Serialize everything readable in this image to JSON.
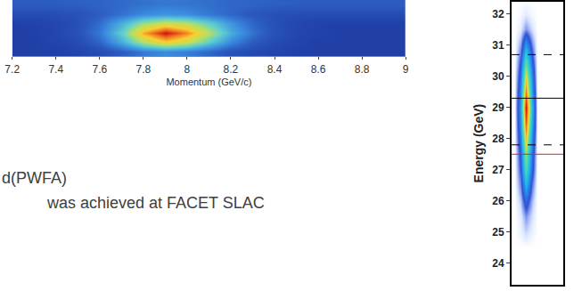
{
  "chart_data": [
    {
      "type": "heatmap",
      "xlabel": "Momentum (GeV/c)",
      "x": [
        7.2,
        7.3,
        7.4,
        7.5,
        7.6,
        7.7,
        7.8,
        7.9,
        8.0,
        8.1,
        8.2,
        8.3,
        8.4,
        8.5,
        8.6,
        8.7,
        8.8,
        8.9,
        9.0
      ],
      "y": [
        0,
        1,
        2,
        3,
        4,
        5
      ],
      "z": [
        [
          0,
          0,
          0,
          0.02,
          0.05,
          0.12,
          0.2,
          0.25,
          0.22,
          0.15,
          0.08,
          0.04,
          0.02,
          0,
          0,
          0,
          0,
          0,
          0
        ],
        [
          0,
          0,
          0.02,
          0.05,
          0.15,
          0.35,
          0.6,
          0.75,
          0.65,
          0.45,
          0.25,
          0.12,
          0.05,
          0.02,
          0,
          0,
          0,
          0,
          0
        ],
        [
          0,
          0,
          0.03,
          0.08,
          0.2,
          0.45,
          0.8,
          1.0,
          0.85,
          0.6,
          0.35,
          0.18,
          0.08,
          0.03,
          0.01,
          0,
          0,
          0,
          0
        ],
        [
          0,
          0.01,
          0.03,
          0.07,
          0.17,
          0.35,
          0.55,
          0.65,
          0.6,
          0.45,
          0.28,
          0.15,
          0.07,
          0.03,
          0.01,
          0,
          0,
          0,
          0
        ],
        [
          0.05,
          0.05,
          0.06,
          0.08,
          0.12,
          0.18,
          0.25,
          0.28,
          0.26,
          0.2,
          0.15,
          0.1,
          0.07,
          0.06,
          0.05,
          0.05,
          0.05,
          0.05,
          0.05
        ],
        [
          0.12,
          0.12,
          0.12,
          0.13,
          0.14,
          0.16,
          0.18,
          0.2,
          0.19,
          0.17,
          0.15,
          0.14,
          0.13,
          0.12,
          0.12,
          0.12,
          0.12,
          0.12,
          0.12
        ]
      ],
      "xlim": [
        7.2,
        9.0
      ],
      "xticks": [
        7.2,
        7.4,
        7.6,
        7.8,
        8.0,
        8.2,
        8.4,
        8.6,
        8.8,
        9.0
      ],
      "ylim": [
        -0.5,
        5.5
      ],
      "tick_labels": "x",
      "grid": false
    },
    {
      "type": "heatmap",
      "ylabel": "Energy (GeV)",
      "x": [
        0,
        1,
        2,
        3,
        4,
        5,
        6,
        7,
        8
      ],
      "y": [
        23.5,
        24,
        24.5,
        25,
        25.5,
        26,
        26.5,
        27,
        27.5,
        28,
        28.5,
        29,
        29.5,
        30,
        30.5,
        31,
        31.5,
        32,
        32.5
      ],
      "z": [
        [
          0,
          0,
          0,
          0,
          0,
          0,
          0,
          0,
          0
        ],
        [
          0,
          0,
          0,
          0,
          0,
          0,
          0,
          0,
          0
        ],
        [
          0,
          0,
          0,
          0,
          0,
          0,
          0,
          0,
          0
        ],
        [
          0,
          0.02,
          0.05,
          0.02,
          0,
          0,
          0,
          0,
          0
        ],
        [
          0,
          0.03,
          0.1,
          0.04,
          0,
          0,
          0,
          0,
          0
        ],
        [
          0,
          0.06,
          0.2,
          0.07,
          0,
          0,
          0,
          0,
          0
        ],
        [
          0,
          0.11,
          0.35,
          0.12,
          0,
          0,
          0,
          0,
          0
        ],
        [
          0,
          0.15,
          0.5,
          0.18,
          0,
          0,
          0,
          0,
          0
        ],
        [
          0,
          0.18,
          0.6,
          0.21,
          0,
          0,
          0,
          0,
          0
        ],
        [
          0,
          0.23,
          0.75,
          0.26,
          0,
          0,
          0,
          0,
          0
        ],
        [
          0,
          0.27,
          0.9,
          0.32,
          0,
          0,
          0,
          0,
          0
        ],
        [
          0,
          0.3,
          1.0,
          0.35,
          0,
          0,
          0,
          0,
          0
        ],
        [
          0,
          0.26,
          0.85,
          0.3,
          0,
          0,
          0,
          0,
          0
        ],
        [
          0,
          0.21,
          0.7,
          0.25,
          0,
          0,
          0,
          0,
          0
        ],
        [
          0,
          0.15,
          0.5,
          0.18,
          0,
          0,
          0,
          0,
          0
        ],
        [
          0,
          0.09,
          0.3,
          0.11,
          0,
          0,
          0,
          0,
          0
        ],
        [
          0,
          0.03,
          0.1,
          0.04,
          0,
          0,
          0,
          0,
          0
        ],
        [
          0,
          0.01,
          0.03,
          0.01,
          0,
          0,
          0,
          0,
          0
        ],
        [
          0,
          0,
          0,
          0,
          0,
          0,
          0,
          0,
          0
        ]
      ],
      "xlim": [
        -0.5,
        8.5
      ],
      "ylim": [
        23.3,
        32.4
      ],
      "yticks": [
        24,
        25,
        26,
        27,
        28,
        29,
        30,
        31,
        32
      ],
      "tick_labels": "y",
      "grid": true,
      "reference_lines": [
        {
          "value": 30.7,
          "color": "#000000",
          "line_style": "dash"
        },
        {
          "value": 29.3,
          "color": "#000000",
          "line_style": "solid"
        },
        {
          "value": 27.8,
          "color": "#000000",
          "line_style": "dash"
        },
        {
          "value": 27.5,
          "color": "#e02020",
          "line_style": "solid"
        }
      ]
    }
  ],
  "text": [
    "d(PWFA)",
    "was achieved at FACET SLAC"
  ]
}
